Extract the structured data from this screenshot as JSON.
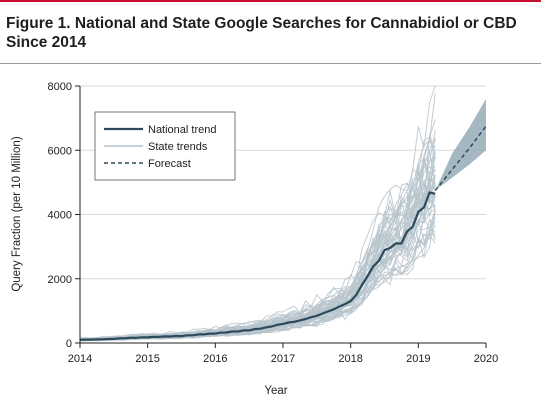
{
  "figure": {
    "title_line1": "Figure 1. National and State Google Searches for Cannabidiol or CBD",
    "title_line2": "Since 2014"
  },
  "colors": {
    "accent_rule": "#c8102e",
    "national": "#2d4a5c",
    "state": "#b7c4cc",
    "forecast_band": "#8fa5b2",
    "grid": "#d9d9d9",
    "axis": "#222222"
  },
  "chart_data": {
    "type": "line",
    "xlabel": "Year",
    "ylabel": "Query Fraction (per 10 Million)",
    "xlim": [
      2014,
      2020
    ],
    "ylim": [
      0,
      8000
    ],
    "x_ticks": [
      2014,
      2015,
      2016,
      2017,
      2018,
      2019,
      2020
    ],
    "y_ticks": [
      0,
      2000,
      4000,
      6000,
      8000
    ],
    "y_tick_labels": [
      "0",
      "2000",
      "4000",
      "6000",
      "8000"
    ],
    "grid": "horizontal",
    "legend_position": "top-left",
    "legend": [
      "National trend",
      "State trends",
      "Forecast"
    ],
    "series": [
      {
        "name": "National trend",
        "x": [
          2014.0,
          2014.25,
          2014.5,
          2014.75,
          2015.0,
          2015.25,
          2015.5,
          2015.75,
          2016.0,
          2016.25,
          2016.5,
          2016.75,
          2017.0,
          2017.25,
          2017.5,
          2017.75,
          2018.0,
          2018.08,
          2018.17,
          2018.25,
          2018.33,
          2018.42,
          2018.5,
          2018.58,
          2018.67,
          2018.75,
          2018.83,
          2018.92,
          2019.0,
          2019.08,
          2019.17,
          2019.25
        ],
        "values": [
          100,
          110,
          130,
          160,
          180,
          200,
          220,
          260,
          300,
          350,
          400,
          480,
          600,
          700,
          850,
          1050,
          1300,
          1500,
          1800,
          2100,
          2350,
          2600,
          2850,
          3000,
          3050,
          3150,
          3400,
          3700,
          4000,
          4300,
          4600,
          4750
        ]
      },
      {
        "name": "Forecast",
        "x": [
          2019.25,
          2019.5,
          2019.75,
          2020.0
        ],
        "values": [
          4750,
          5400,
          6050,
          6750
        ],
        "lower": [
          4750,
          5150,
          5550,
          6000
        ],
        "upper": [
          4750,
          5900,
          6700,
          7600
        ]
      }
    ],
    "state_trends": {
      "count": 51,
      "x_end": 2019.25,
      "peak_value": 8000,
      "range_at_end": [
        3300,
        6700
      ]
    }
  }
}
